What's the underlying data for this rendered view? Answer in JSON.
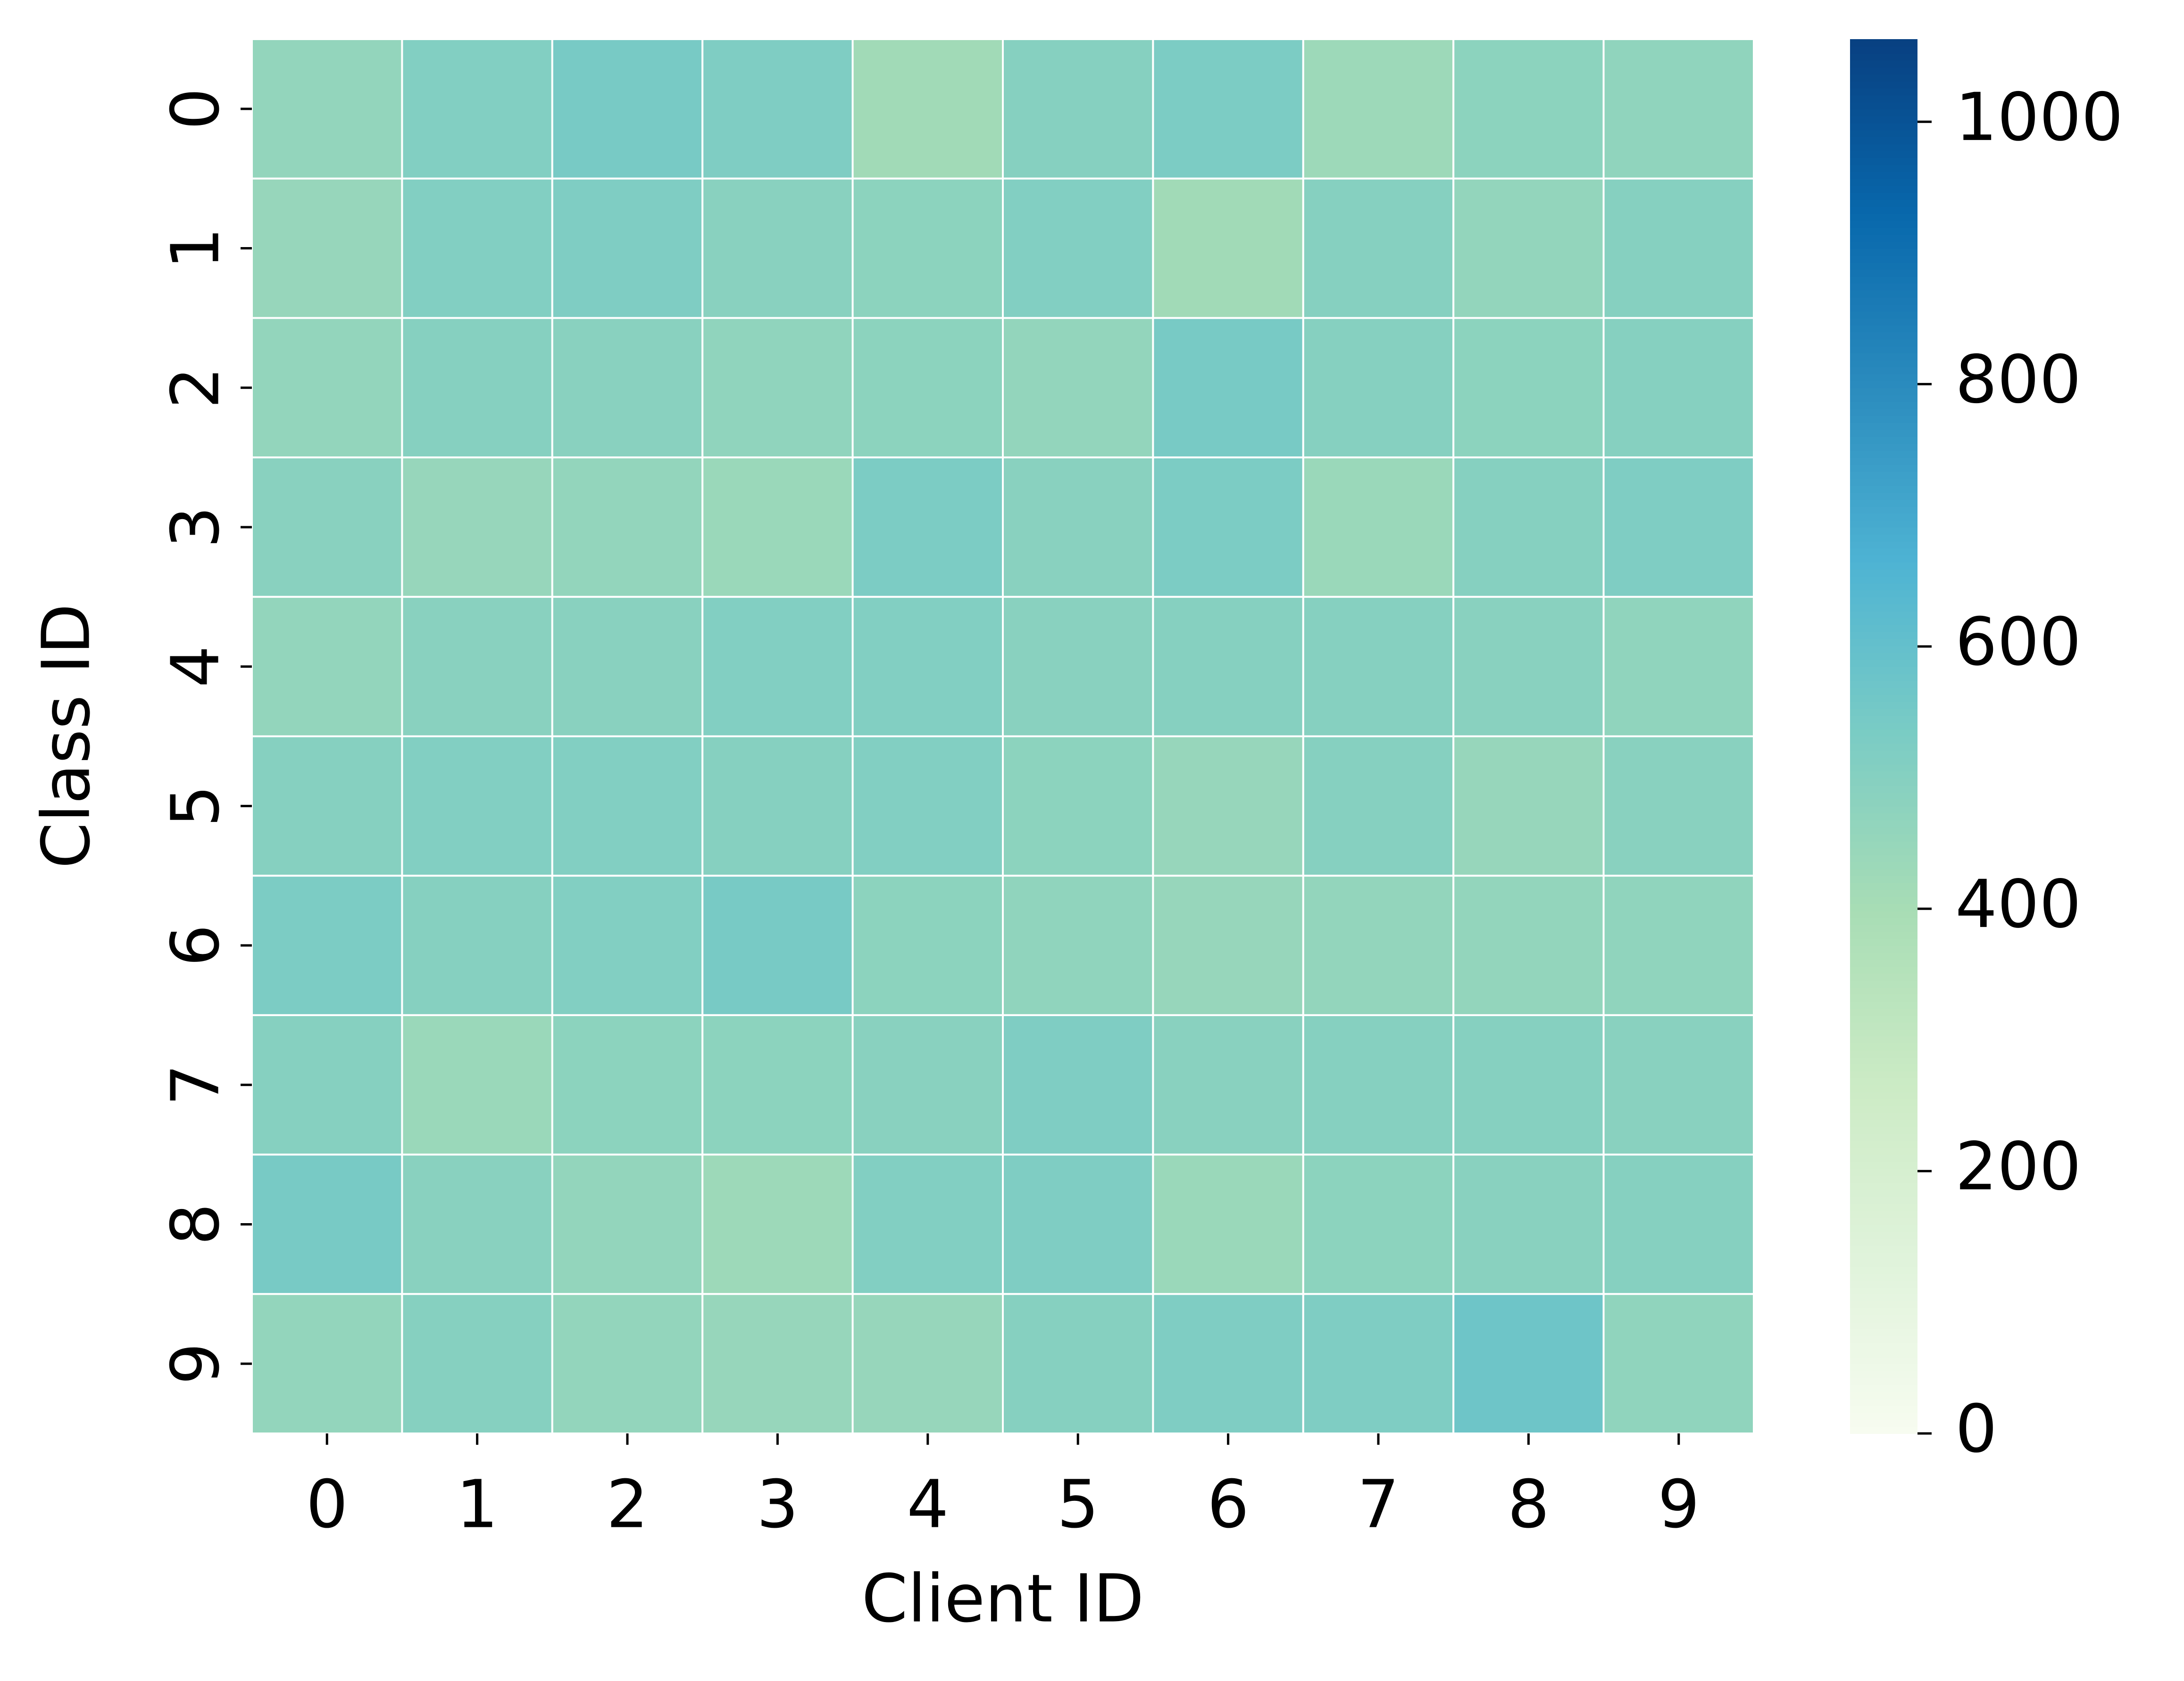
{
  "chart_data": {
    "type": "heatmap",
    "xlabel": "Client ID",
    "ylabel": "Class ID",
    "x_categories": [
      "0",
      "1",
      "2",
      "3",
      "4",
      "5",
      "6",
      "7",
      "8",
      "9"
    ],
    "y_categories": [
      "0",
      "1",
      "2",
      "3",
      "4",
      "5",
      "6",
      "7",
      "8",
      "9"
    ],
    "values": [
      [
        460,
        510,
        540,
        520,
        420,
        500,
        530,
        430,
        480,
        470
      ],
      [
        450,
        510,
        520,
        490,
        480,
        510,
        420,
        500,
        460,
        500
      ],
      [
        460,
        500,
        490,
        470,
        480,
        460,
        540,
        500,
        480,
        500
      ],
      [
        490,
        450,
        460,
        440,
        530,
        490,
        530,
        440,
        500,
        520
      ],
      [
        460,
        490,
        490,
        510,
        510,
        490,
        500,
        500,
        490,
        470
      ],
      [
        500,
        510,
        510,
        500,
        510,
        480,
        450,
        500,
        450,
        490
      ],
      [
        530,
        500,
        510,
        540,
        480,
        470,
        450,
        460,
        460,
        470
      ],
      [
        500,
        440,
        480,
        480,
        490,
        520,
        490,
        500,
        500,
        490
      ],
      [
        540,
        490,
        460,
        430,
        510,
        520,
        440,
        480,
        490,
        500
      ],
      [
        460,
        500,
        460,
        450,
        450,
        500,
        520,
        520,
        570,
        470
      ]
    ],
    "colormap": "GnBu",
    "clim": [
      0,
      1063
    ],
    "cticks": [
      0,
      200,
      400,
      600,
      800,
      1000
    ]
  }
}
